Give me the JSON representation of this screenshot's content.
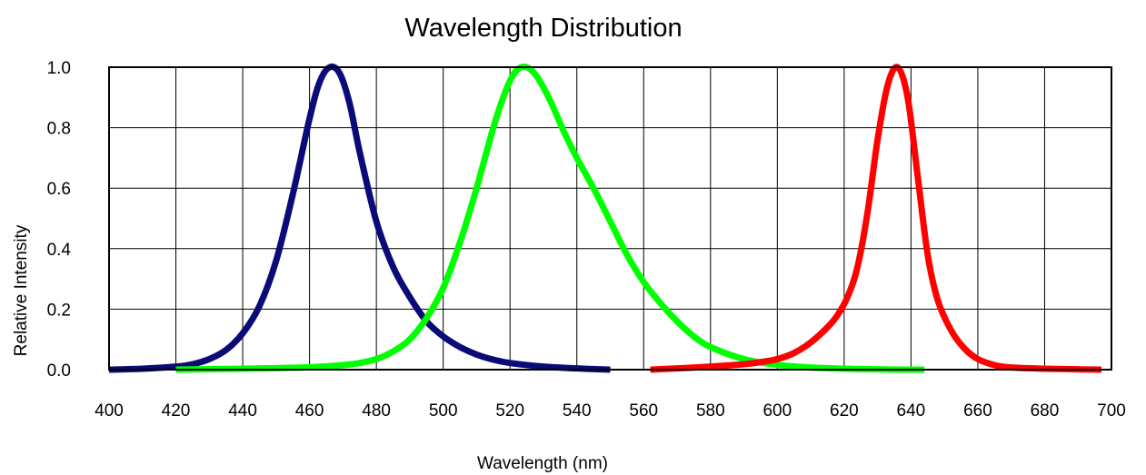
{
  "chart_data": {
    "type": "line",
    "title": "Wavelength Distribution",
    "xlabel": "Wavelength (nm)",
    "ylabel": "Relative Intensity",
    "xlim": [
      400,
      700
    ],
    "ylim": [
      0,
      1.0
    ],
    "grid": true,
    "xticks": [
      "400",
      "420",
      "440",
      "460",
      "480",
      "500",
      "520",
      "540",
      "560",
      "580",
      "600",
      "620",
      "640",
      "660",
      "680",
      "700"
    ],
    "yticks": [
      "0.0",
      "0.2",
      "0.4",
      "0.6",
      "0.8",
      "1.0"
    ],
    "series": [
      {
        "color": "#0a0a78",
        "x": [
          400,
          410,
          420,
          425,
          430,
          435,
          440,
          445,
          450,
          455,
          460,
          463,
          466,
          469,
          472,
          475,
          480,
          485,
          490,
          495,
          500,
          505,
          510,
          515,
          520,
          530,
          540,
          550
        ],
        "y": [
          0.0,
          0.003,
          0.01,
          0.018,
          0.035,
          0.065,
          0.12,
          0.21,
          0.36,
          0.58,
          0.83,
          0.95,
          1.0,
          0.98,
          0.88,
          0.72,
          0.49,
          0.34,
          0.24,
          0.16,
          0.11,
          0.075,
          0.05,
          0.033,
          0.022,
          0.01,
          0.004,
          0.0
        ]
      },
      {
        "color": "#00ff00",
        "x": [
          420,
          440,
          460,
          470,
          475,
          480,
          485,
          490,
          495,
          500,
          505,
          510,
          515,
          519,
          522,
          525,
          528,
          532,
          536,
          540,
          545,
          550,
          555,
          560,
          565,
          570,
          575,
          580,
          590,
          600,
          610,
          620,
          630,
          640,
          644
        ],
        "y": [
          0.0,
          0.003,
          0.008,
          0.015,
          0.022,
          0.035,
          0.06,
          0.1,
          0.17,
          0.27,
          0.42,
          0.6,
          0.8,
          0.93,
          0.99,
          1.0,
          0.97,
          0.89,
          0.79,
          0.7,
          0.6,
          0.49,
          0.38,
          0.29,
          0.22,
          0.16,
          0.11,
          0.075,
          0.035,
          0.016,
          0.007,
          0.003,
          0.001,
          0.0,
          0.0
        ]
      },
      {
        "color": "#ff0000",
        "x": [
          562,
          570,
          580,
          590,
          595,
          600,
          605,
          610,
          615,
          618,
          621,
          624,
          627,
          630,
          633,
          636,
          639,
          642,
          645,
          648,
          652,
          656,
          660,
          665,
          670,
          680,
          690,
          697
        ],
        "y": [
          0.0,
          0.004,
          0.01,
          0.018,
          0.025,
          0.035,
          0.055,
          0.09,
          0.14,
          0.18,
          0.24,
          0.34,
          0.52,
          0.76,
          0.94,
          1.0,
          0.9,
          0.64,
          0.38,
          0.23,
          0.13,
          0.07,
          0.035,
          0.015,
          0.007,
          0.003,
          0.001,
          0.0
        ]
      }
    ]
  }
}
